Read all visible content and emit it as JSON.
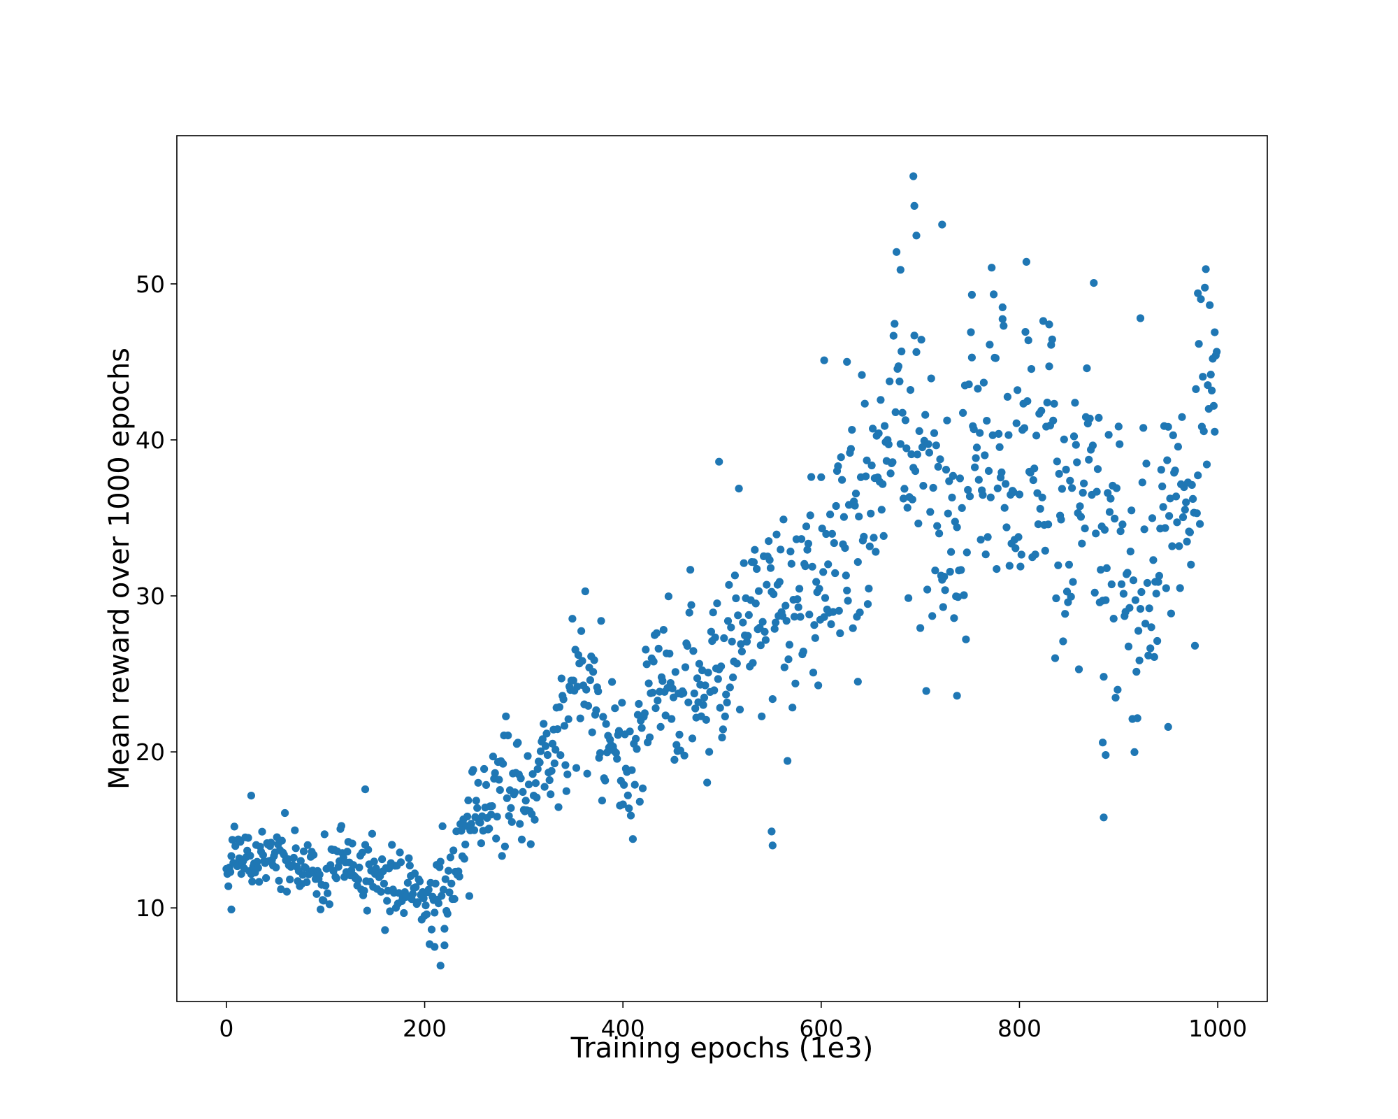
{
  "chart_data": {
    "type": "scatter",
    "title": "",
    "xlabel": "Training epochs (1e3)",
    "ylabel": "Mean reward over 1000 epochs",
    "xlim": [
      -50,
      1050
    ],
    "ylim": [
      4,
      59.5
    ],
    "xticks": [
      0,
      200,
      400,
      600,
      800,
      1000
    ],
    "yticks": [
      10,
      20,
      30,
      40,
      50
    ],
    "xtick_labels": [
      "0",
      "200",
      "400",
      "600",
      "800",
      "1000"
    ],
    "ytick_labels": [
      "10",
      "20",
      "30",
      "40",
      "50"
    ],
    "grid": false,
    "legend": "none",
    "marker_color": "#1f77b4",
    "trend_anchors": [
      [
        0,
        13.2
      ],
      [
        100,
        12.3
      ],
      [
        160,
        12.6
      ],
      [
        200,
        10.6
      ],
      [
        220,
        11.3
      ],
      [
        250,
        17.5
      ],
      [
        300,
        18.0
      ],
      [
        350,
        23.5
      ],
      [
        400,
        21.5
      ],
      [
        450,
        25.0
      ],
      [
        500,
        26.0
      ],
      [
        550,
        29.5
      ],
      [
        600,
        31.5
      ],
      [
        650,
        34.0
      ],
      [
        675,
        43.0
      ],
      [
        700,
        40.0
      ],
      [
        730,
        36.0
      ],
      [
        760,
        41.0
      ],
      [
        800,
        39.5
      ],
      [
        850,
        37.0
      ],
      [
        880,
        35.0
      ],
      [
        900,
        33.0
      ],
      [
        940,
        32.0
      ],
      [
        960,
        34.0
      ],
      [
        1000,
        42.0
      ]
    ],
    "spread_anchors": [
      [
        0,
        1.3
      ],
      [
        200,
        1.6
      ],
      [
        300,
        3.0
      ],
      [
        600,
        4.0
      ],
      [
        700,
        6.0
      ],
      [
        900,
        6.0
      ],
      [
        1000,
        4.0
      ]
    ],
    "notable_points": [
      {
        "x": 5,
        "y": 9.9
      },
      {
        "x": 25,
        "y": 17.2
      },
      {
        "x": 140,
        "y": 17.6
      },
      {
        "x": 210,
        "y": 7.5
      },
      {
        "x": 216,
        "y": 6.3
      },
      {
        "x": 220,
        "y": 7.6
      },
      {
        "x": 497,
        "y": 38.6
      },
      {
        "x": 550,
        "y": 14.9
      },
      {
        "x": 551,
        "y": 14.0
      },
      {
        "x": 603,
        "y": 45.1
      },
      {
        "x": 626,
        "y": 45.0
      },
      {
        "x": 637,
        "y": 24.5
      },
      {
        "x": 680,
        "y": 50.9
      },
      {
        "x": 693,
        "y": 56.9
      },
      {
        "x": 694,
        "y": 55.0
      },
      {
        "x": 696,
        "y": 53.1
      },
      {
        "x": 722,
        "y": 53.8
      },
      {
        "x": 737,
        "y": 23.6
      },
      {
        "x": 752,
        "y": 49.3
      },
      {
        "x": 783,
        "y": 48.5
      },
      {
        "x": 830,
        "y": 47.4
      },
      {
        "x": 885,
        "y": 15.8
      },
      {
        "x": 887,
        "y": 19.8
      },
      {
        "x": 884,
        "y": 20.6
      },
      {
        "x": 922,
        "y": 47.8
      },
      {
        "x": 950,
        "y": 21.6
      },
      {
        "x": 980,
        "y": 49.4
      },
      {
        "x": 997,
        "y": 46.9
      }
    ]
  }
}
